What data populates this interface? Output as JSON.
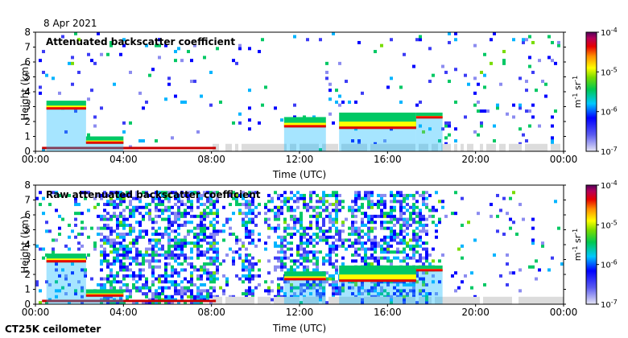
{
  "date": "8 Apr 2021",
  "instrument": "CT25K ceilometer",
  "chart_data": [
    {
      "type": "heatmap",
      "title": "Attenuated backscatter coefficient",
      "xlabel": "Time (UTC)",
      "ylabel": "Height (km)",
      "x_ticks": [
        "00:00",
        "04:00",
        "08:00",
        "12:00",
        "16:00",
        "20:00",
        "00:00"
      ],
      "y_ticks": [
        "0",
        "1",
        "2",
        "3",
        "4",
        "5",
        "6",
        "7",
        "8"
      ],
      "xlim_hours": [
        0,
        24
      ],
      "ylim": [
        0,
        8
      ],
      "colorbar": {
        "label": "m-1 sr-1",
        "scale": "log",
        "range": [
          1e-07,
          0.0001
        ],
        "ticks": [
          "10-7",
          "10-6",
          "10-5",
          "10-4"
        ]
      },
      "cloud_layers": [
        {
          "start_h": 0.5,
          "end_h": 2.3,
          "base_km": 2.8,
          "top_km": 3.4
        },
        {
          "start_h": 2.3,
          "end_h": 4.0,
          "base_km": 0.5,
          "top_km": 1.0
        },
        {
          "start_h": 11.3,
          "end_h": 13.2,
          "base_km": 1.6,
          "top_km": 2.3
        },
        {
          "start_h": 13.8,
          "end_h": 17.3,
          "base_km": 1.5,
          "top_km": 2.6
        },
        {
          "start_h": 17.3,
          "end_h": 18.5,
          "base_km": 2.2,
          "top_km": 2.6
        }
      ],
      "noise_mode": "clean"
    },
    {
      "type": "heatmap",
      "title": "Raw attenuated backscatter coefficient",
      "xlabel": "Time (UTC)",
      "ylabel": "Height (km)",
      "x_ticks": [
        "00:00",
        "04:00",
        "08:00",
        "12:00",
        "16:00",
        "20:00",
        "00:00"
      ],
      "y_ticks": [
        "0",
        "1",
        "2",
        "3",
        "4",
        "5",
        "6",
        "7",
        "8"
      ],
      "xlim_hours": [
        0,
        24
      ],
      "ylim": [
        0,
        8
      ],
      "colorbar": {
        "label": "m-1 sr-1",
        "scale": "log",
        "range": [
          1e-07,
          0.0001
        ],
        "ticks": [
          "10-7",
          "10-6",
          "10-5",
          "10-4"
        ]
      },
      "cloud_layers": [
        {
          "start_h": 0.5,
          "end_h": 2.3,
          "base_km": 2.8,
          "top_km": 3.4
        },
        {
          "start_h": 2.3,
          "end_h": 4.0,
          "base_km": 0.5,
          "top_km": 1.0
        },
        {
          "start_h": 11.3,
          "end_h": 13.2,
          "base_km": 1.6,
          "top_km": 2.2
        },
        {
          "start_h": 13.8,
          "end_h": 17.3,
          "base_km": 1.5,
          "top_km": 2.6
        },
        {
          "start_h": 17.3,
          "end_h": 18.5,
          "base_km": 2.2,
          "top_km": 2.6
        }
      ],
      "noise_mode": "raw"
    }
  ]
}
